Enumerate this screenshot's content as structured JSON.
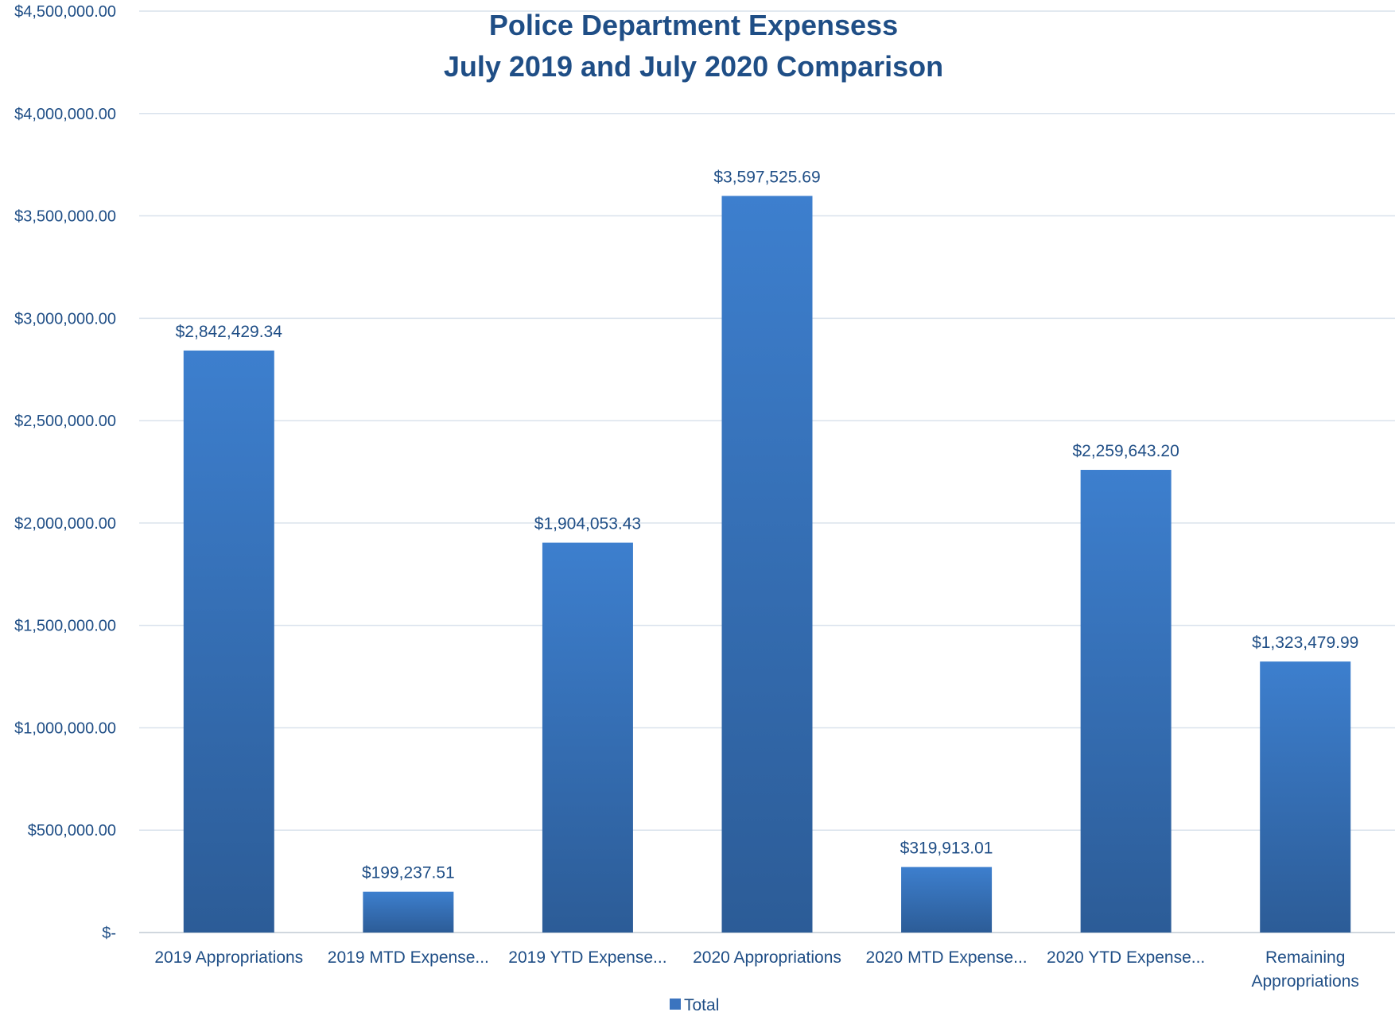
{
  "chart_data": {
    "type": "bar",
    "title": "Police Department Expensess",
    "subtitle": "July 2019 and July 2020 Comparison",
    "categories": [
      [
        "2019 Appropriations"
      ],
      [
        "2019 MTD Expense..."
      ],
      [
        "2019 YTD Expense..."
      ],
      [
        "2020 Appropriations"
      ],
      [
        "2020 MTD Expense..."
      ],
      [
        "2020 YTD Expense..."
      ],
      [
        "Remaining",
        "Appropriations"
      ]
    ],
    "series": [
      {
        "name": "Total",
        "values": [
          2842429.34,
          199237.51,
          1904053.43,
          3597525.69,
          319913.01,
          2259643.2,
          1323479.99
        ],
        "labels": [
          "$2,842,429.34",
          "$199,237.51",
          "$1,904,053.43",
          "$3,597,525.69",
          "$319,913.01",
          "$2,259,643.20",
          "$1,323,479.99"
        ]
      }
    ],
    "ylim": [
      0,
      4500000
    ],
    "yticks": [
      0,
      500000,
      1000000,
      1500000,
      2000000,
      2500000,
      3000000,
      3500000,
      4000000,
      4500000
    ],
    "ytick_labels": [
      "$-",
      "$500,000.00",
      "$1,000,000.00",
      "$1,500,000.00",
      "$2,000,000.00",
      "$2,500,000.00",
      "$3,000,000.00",
      "$3,500,000.00",
      "$4,000,000.00",
      "$4,500,000.00"
    ],
    "grid": true,
    "legend": "bottom-center",
    "colors": {
      "bar_top": "#3d7fce",
      "bar_bottom": "#2c5c97",
      "text": "#1f4e86",
      "grid": "#d9e2ec",
      "axis": "#d0d7de",
      "legend_swatch": "#3b74bf"
    }
  }
}
